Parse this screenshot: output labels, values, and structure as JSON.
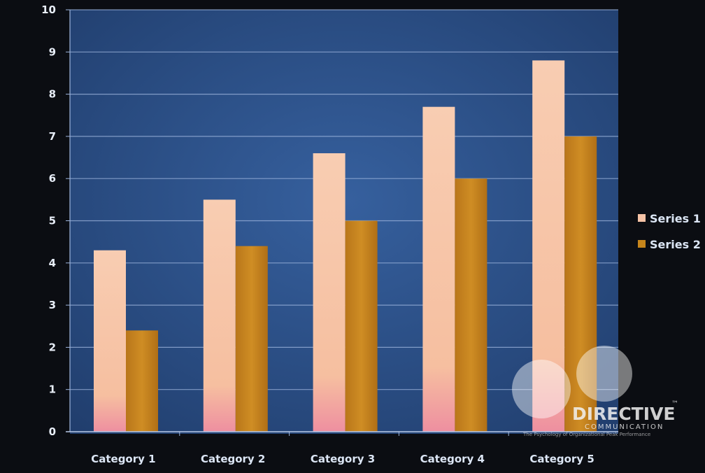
{
  "chart_data": {
    "type": "bar",
    "categories": [
      "Category 1",
      "Category 2",
      "Category 3",
      "Category 4",
      "Category 5"
    ],
    "series": [
      {
        "name": "Series 1",
        "values": [
          4.3,
          5.5,
          6.6,
          7.7,
          8.8
        ]
      },
      {
        "name": "Series 2",
        "values": [
          2.4,
          4.4,
          5.0,
          6.0,
          7.0
        ]
      }
    ],
    "ylim": [
      0,
      10
    ],
    "yticks": [
      0,
      1,
      2,
      3,
      4,
      5,
      6,
      7,
      8,
      9,
      10
    ],
    "grid": true,
    "legend_position": "right",
    "colors": {
      "plot_background": "#2d4f86",
      "page_background": "#0b0d12",
      "series1": "#f6c3a6",
      "series2": "#c6851b",
      "gridline": "#9fb6dd"
    }
  },
  "watermark": {
    "brand": "DIRECTIVE",
    "trademark": "™",
    "subtitle": "COMMUNICATION",
    "tagline": "The Psychology of Organizational Peak Performance"
  }
}
